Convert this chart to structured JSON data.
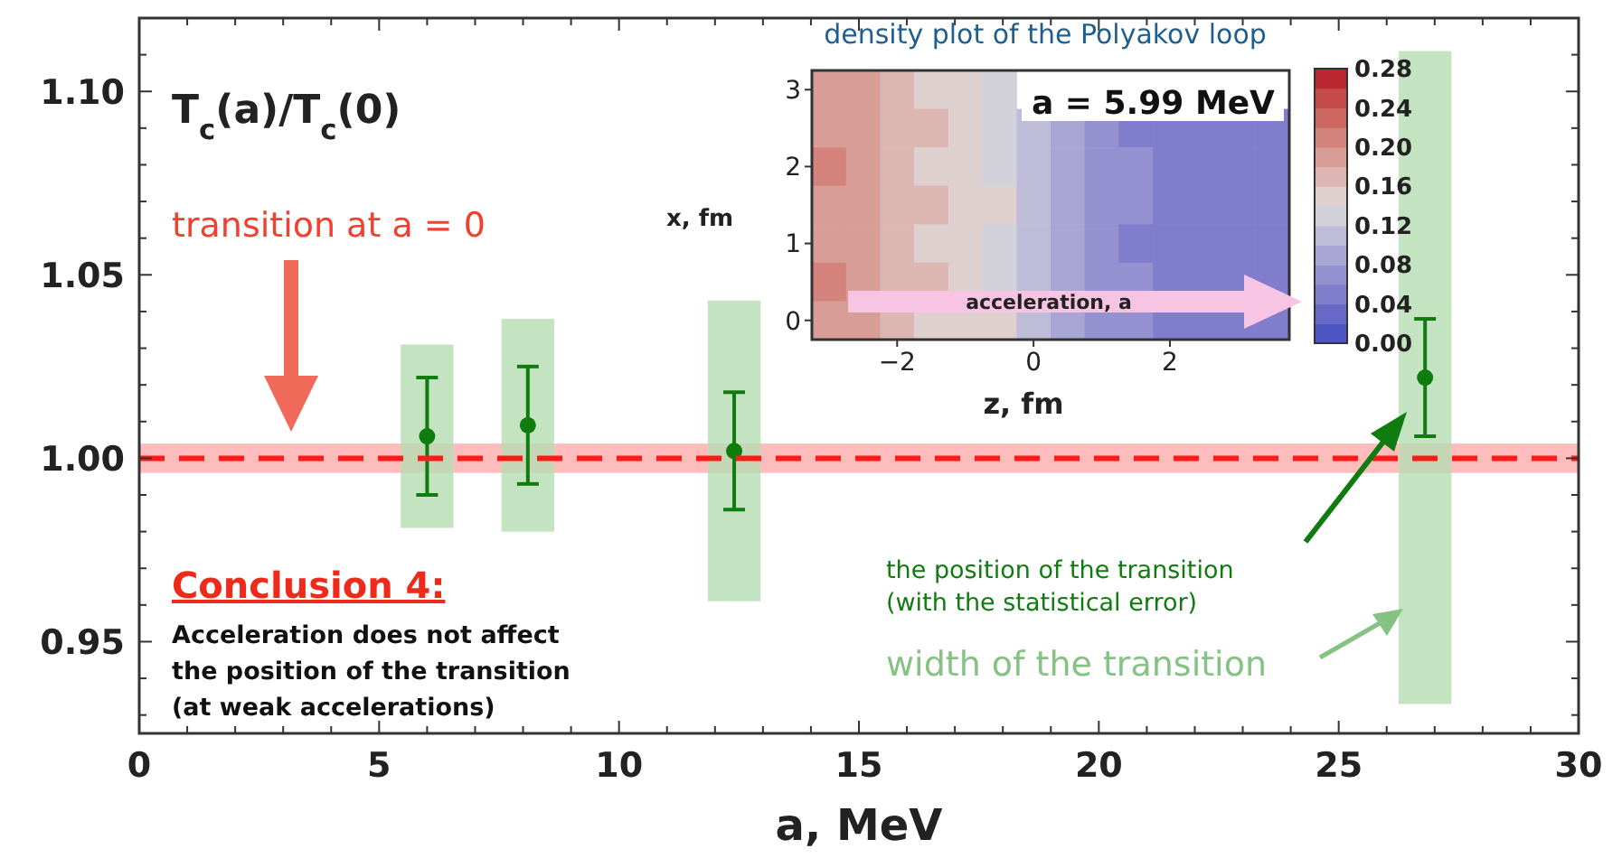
{
  "chart_data": [
    {
      "type": "scatter",
      "xlabel": "a, MeV",
      "ylabel": "T$_{c}$(a)/T$_{c}$(0)",
      "xlim": [
        0,
        30
      ],
      "xticks": [
        0,
        {
          "value": 1,
          "label": null
        },
        {
          "value": 2,
          "label": null
        },
        {
          "value": 3,
          "label": null
        },
        {
          "value": 4,
          "label": null
        },
        5,
        {
          "value": 6,
          "label": null
        },
        {
          "value": 7,
          "label": null
        },
        {
          "value": 8,
          "label": null
        },
        {
          "value": 9,
          "label": null
        },
        10,
        {
          "value": 11,
          "label": null
        },
        {
          "value": 12,
          "label": null
        },
        {
          "value": 13,
          "label": null
        },
        {
          "value": 14,
          "label": null
        },
        15,
        {
          "value": 16,
          "label": null
        },
        {
          "value": 17,
          "label": null
        },
        {
          "value": 18,
          "label": null
        },
        {
          "value": 19,
          "label": null
        },
        20,
        {
          "value": 21,
          "label": null
        },
        {
          "value": 22,
          "label": null
        },
        {
          "value": 23,
          "label": null
        },
        {
          "value": 24,
          "label": null
        },
        25,
        {
          "value": 26,
          "label": null
        },
        {
          "value": 27,
          "label": null
        },
        {
          "value": 28,
          "label": null
        },
        {
          "value": 29,
          "label": null
        },
        30
      ],
      "ylim": [
        0.925,
        1.12
      ],
      "yticks": [
        {
          "value": 0.93,
          "label": null
        },
        {
          "value": 0.94,
          "label": null
        },
        {
          "value": 0.95,
          "label": "0.95"
        },
        {
          "value": 0.96,
          "label": null
        },
        {
          "value": 0.97,
          "label": null
        },
        {
          "value": 0.98,
          "label": null
        },
        {
          "value": 0.99,
          "label": null
        },
        {
          "value": 1.0,
          "label": "1.00"
        },
        {
          "value": 1.01,
          "label": null
        },
        {
          "value": 1.02,
          "label": null
        },
        {
          "value": 1.03,
          "label": null
        },
        {
          "value": 1.04,
          "label": null
        },
        {
          "value": 1.05,
          "label": "1.05"
        },
        {
          "value": 1.06,
          "label": null
        },
        {
          "value": 1.07,
          "label": null
        },
        {
          "value": 1.08,
          "label": null
        },
        {
          "value": 1.09,
          "label": null
        },
        {
          "value": 1.1,
          "label": "1.10"
        },
        {
          "value": 1.11,
          "label": null
        },
        {
          "value": 1.12,
          "label": null
        }
      ],
      "marker": "circle",
      "series": [
        {
          "type": "bar",
          "color": "#b5dcb0",
          "x": [
            6.0,
            8.1,
            12.4,
            26.8
          ],
          "base": [
            0.981,
            0.98,
            0.961,
            0.933
          ],
          "values": [
            0.05,
            0.058,
            0.082,
            0.178
          ]
        },
        {
          "type": "scatter",
          "color": "#107c10",
          "x": [
            6.0,
            8.1,
            12.4,
            26.8
          ],
          "values": [
            1.006,
            1.009,
            1.002,
            1.022
          ],
          "errors": [
            0.016,
            0.016,
            0.016,
            0.016
          ]
        }
      ],
      "ref_lines": [
        {
          "axis": "y",
          "value": 1.0,
          "color": "#ff1a1a",
          "line_style": "dashed"
        }
      ],
      "bands": [
        {
          "axis": "y",
          "from": 0.996,
          "to": 1.004,
          "color": "#ffb0b0"
        }
      ],
      "annotations": [
        "transition at a = 0",
        "Conclusion 4:",
        "Acceleration does not affect",
        "the position of the transition",
        "(at weak accelerations)",
        "the position of the transition",
        "(with the statistical error)",
        "width of the transition"
      ]
    },
    {
      "type": "heatmap",
      "title": "density plot of the Polyakov loop",
      "xlabel": "z, fm",
      "ylabel": "x, fm",
      "categories": [
        null,
        null,
        "−2",
        null,
        null,
        null,
        "0",
        null,
        null,
        null,
        "2",
        null,
        null,
        null
      ],
      "y_categories": [
        "3",
        null,
        "2",
        null,
        "1",
        null,
        "0"
      ],
      "cells": [
        [
          0.19,
          0.18,
          0.17,
          0.15,
          0.15,
          0.13,
          null,
          null,
          null,
          null,
          null,
          null,
          null,
          null
        ],
        [
          0.18,
          0.19,
          0.16,
          0.16,
          0.14,
          0.12,
          0.11,
          0.09,
          0.07,
          0.05,
          0.05,
          0.05,
          0.04,
          0.04
        ],
        [
          0.2,
          0.18,
          0.17,
          0.15,
          0.15,
          0.13,
          0.1,
          0.08,
          0.07,
          0.06,
          0.05,
          0.04,
          0.04,
          0.05
        ],
        [
          0.19,
          0.18,
          0.16,
          0.16,
          0.14,
          0.14,
          0.11,
          0.09,
          0.06,
          0.06,
          0.04,
          0.05,
          0.04,
          0.04
        ],
        [
          0.18,
          0.19,
          0.17,
          0.15,
          0.15,
          0.13,
          0.11,
          0.08,
          0.07,
          0.05,
          0.05,
          0.04,
          0.05,
          0.04
        ],
        [
          0.2,
          0.18,
          0.16,
          0.16,
          0.14,
          0.13,
          0.1,
          0.09,
          0.07,
          0.06,
          0.05,
          0.05,
          0.04,
          0.04
        ],
        [
          0.19,
          0.19,
          0.17,
          0.15,
          0.15,
          0.14,
          0.11,
          0.08,
          0.06,
          0.06,
          0.05,
          0.04,
          0.04,
          0.05
        ]
      ],
      "clim": [
        0,
        0.28
      ],
      "cticks": [
        {
          "value": 0,
          "label": "0.00"
        },
        {
          "value": 0.04,
          "label": "0.04"
        },
        {
          "value": 0.08,
          "label": "0.08"
        },
        {
          "value": 0.12,
          "label": "0.12"
        },
        {
          "value": 0.16,
          "label": "0.16"
        },
        {
          "value": 0.2,
          "label": "0.20"
        },
        {
          "value": 0.24,
          "label": "0.24"
        },
        {
          "value": 0.28,
          "label": "0.28"
        }
      ],
      "annotations": [
        "a = 5.99 MeV",
        "acceleration, a"
      ]
    }
  ]
}
